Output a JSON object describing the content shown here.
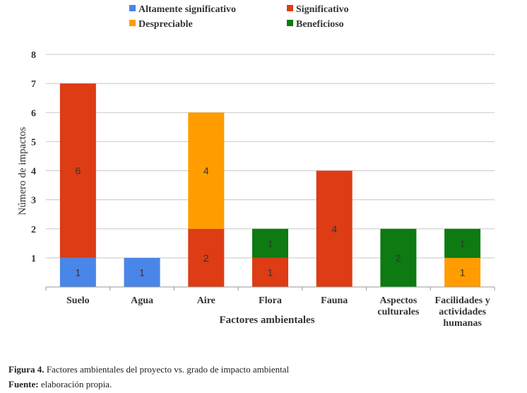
{
  "chart_data": {
    "type": "bar",
    "stacked": true,
    "categories": [
      [
        "Suelo"
      ],
      [
        "Agua"
      ],
      [
        "Aire"
      ],
      [
        "Flora"
      ],
      [
        "Fauna"
      ],
      [
        "Aspectos",
        "culturales"
      ],
      [
        "Facilidades y",
        "actividades",
        "humanas"
      ]
    ],
    "series": [
      {
        "name": "Altamente significativo",
        "color": "#4a86e8",
        "values": [
          1,
          1,
          0,
          0,
          0,
          0,
          0
        ]
      },
      {
        "name": "Significativo",
        "color": "#dd3c14",
        "values": [
          6,
          0,
          2,
          1,
          4,
          0,
          0
        ]
      },
      {
        "name": "Despreciable",
        "color": "#ff9c00",
        "values": [
          0,
          0,
          4,
          0,
          0,
          0,
          1
        ]
      },
      {
        "name": "Beneficioso",
        "color": "#0d7a12",
        "values": [
          0,
          0,
          0,
          1,
          0,
          2,
          1
        ]
      }
    ],
    "xlabel": "Factores ambientales",
    "ylabel": "Número de impactos",
    "ylim": [
      0,
      8
    ],
    "yticks": [
      "1",
      "2",
      "3",
      "4",
      "5",
      "6",
      "7",
      "8"
    ],
    "grid": true,
    "legend_position": "top"
  },
  "caption": {
    "figure_label": "Figura 4.",
    "figure_text": "Factores ambientales del proyecto vs. grado de impacto ambiental",
    "source_label": "Fuente:",
    "source_text": "elaboración propia."
  }
}
